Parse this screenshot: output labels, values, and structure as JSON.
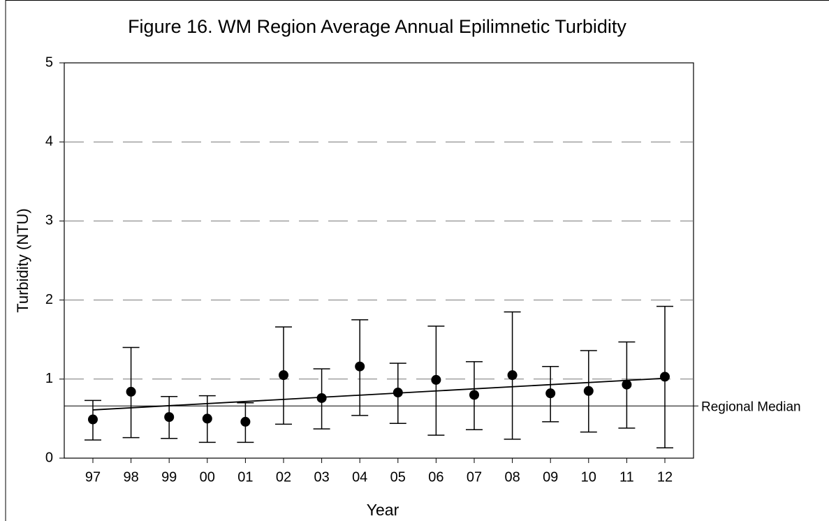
{
  "chart_data": {
    "type": "errorbar",
    "title": "Figure 16. WM Region Average Annual Epilimnetic Turbidity",
    "x_label": "Year",
    "y_label": "Turbidity (NTU)",
    "categories": [
      "97",
      "98",
      "99",
      "00",
      "01",
      "02",
      "03",
      "04",
      "05",
      "06",
      "07",
      "08",
      "09",
      "10",
      "11",
      "12"
    ],
    "series": [
      {
        "color": "#000000",
        "values": [
          0.49,
          0.84,
          0.52,
          0.5,
          0.46,
          1.05,
          0.76,
          1.16,
          0.83,
          0.99,
          0.8,
          1.05,
          0.82,
          0.85,
          0.93,
          1.03
        ],
        "lower": [
          0.23,
          0.26,
          0.25,
          0.2,
          0.2,
          0.43,
          0.37,
          0.54,
          0.44,
          0.29,
          0.36,
          0.24,
          0.46,
          0.33,
          0.38,
          0.13
        ],
        "upper": [
          0.73,
          1.4,
          0.78,
          0.79,
          0.7,
          1.66,
          1.13,
          1.75,
          1.2,
          1.67,
          1.22,
          1.85,
          1.16,
          1.36,
          1.47,
          1.92
        ]
      }
    ],
    "trendline": [
      0.61,
      1.01
    ],
    "median_line": {
      "label": "Regional Median",
      "value": 0.66
    },
    "ylim": [
      0,
      5
    ],
    "yticks": [
      0,
      1,
      2,
      3,
      4,
      5
    ],
    "grid": true
  }
}
